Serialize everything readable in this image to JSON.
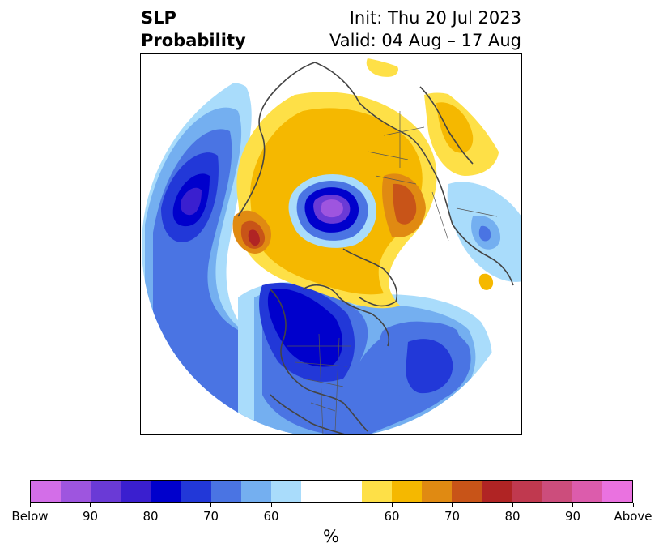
{
  "title": {
    "left_line1": "SLP",
    "left_line2": "Probability",
    "right_line1": "Init: Thu 20 Jul 2023",
    "right_line2": "Valid: 04 Aug – 17 Aug"
  },
  "colorbar": {
    "colors": [
      "#d36ee8",
      "#9e55df",
      "#6a3ad6",
      "#3a1fcf",
      "#0000cc",
      "#2238d8",
      "#4a74e3",
      "#74aff0",
      "#a9dcfb",
      "#ffffff",
      "#ffffff",
      "#fee047",
      "#f5b800",
      "#e08a12",
      "#c85418",
      "#b02424",
      "#c0394f",
      "#cc4d7c",
      "#dc5cac",
      "#ea72e0"
    ],
    "tick_labels": [
      "Below",
      "90",
      "80",
      "70",
      "60",
      "60",
      "70",
      "80",
      "90",
      "Above"
    ],
    "units": "%"
  },
  "map": {
    "projection": "north-polar-stereographic",
    "variable": "SLP probability",
    "below_colors": {
      "p60": "#a9dcfb",
      "p65": "#74aff0",
      "p70": "#4a74e3",
      "p75": "#2238d8",
      "p80": "#0000cc",
      "p85": "#3a1fcf",
      "p90": "#6a3ad6",
      "p95": "#9e55df"
    },
    "above_colors": {
      "p60": "#fee047",
      "p65": "#f5b800",
      "p70": "#e08a12",
      "p75": "#c85418",
      "p80": "#b02424"
    }
  }
}
